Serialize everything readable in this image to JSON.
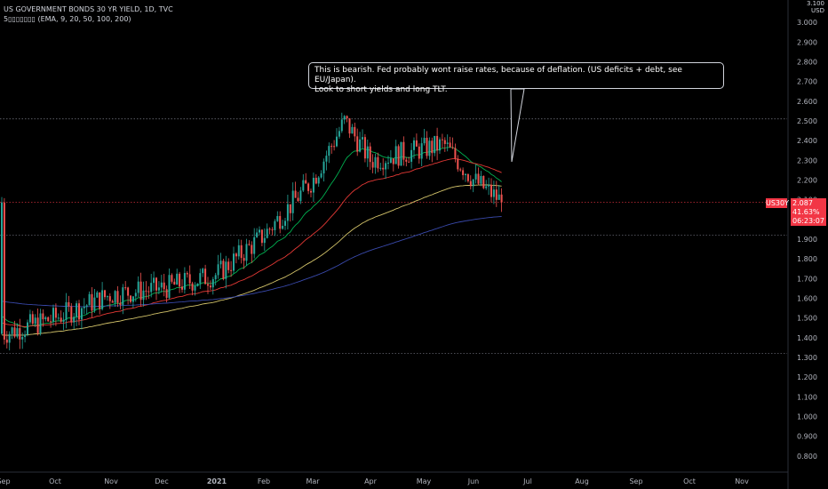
{
  "legend": {
    "title": "US GOVERNMENT BONDS 30 YR YIELD, 1D, TVC",
    "indicator": "5▯▯▯▯▯▯▯ (EMA, 9, 20, 50, 100, 200)"
  },
  "callout": {
    "text_line1": "This is bearish. Fed probably wont raise rates, because of deflation. (US deficits + debt, see EU/Japan).",
    "text_line2": "Look to short yields and long TLT."
  },
  "price_tag": {
    "symbol": "US30Y",
    "value": "2.087",
    "change": "41.63%",
    "countdown": "06:23:07"
  },
  "axis_currency": {
    "line1": "3.100",
    "line2": "USD"
  },
  "colors": {
    "up": "#26a69a",
    "down": "#ef5350",
    "ema20": "#00b050",
    "ema50": "#e53935",
    "ema100": "#d4c46a",
    "ema200": "#3949ab",
    "last": "#f23645"
  },
  "chart_data": {
    "type": "candlestick",
    "title": "US GOVERNMENT BONDS 30 YR YIELD, 1D, TVC",
    "x_ticks": [
      "Sep",
      "Oct",
      "Nov",
      "Dec",
      "2021",
      "Feb",
      "Mar",
      "Apr",
      "May",
      "Jun",
      "Jul",
      "Aug",
      "Sep",
      "Oct",
      "Nov"
    ],
    "y_ticks": [
      "3.000",
      "2.900",
      "2.800",
      "2.700",
      "2.600",
      "2.500",
      "2.400",
      "2.300",
      "2.200",
      "2.100",
      "1.900",
      "1.800",
      "1.700",
      "1.600",
      "1.500",
      "1.400",
      "1.300",
      "1.200",
      "1.100",
      "1.000",
      "0.900",
      "0.800"
    ],
    "ylim": [
      0.72,
      3.08
    ],
    "last_price": 2.087,
    "horizontal_lines": [
      2.51,
      1.92,
      1.32
    ],
    "key_points": [
      {
        "date": "Sep",
        "close": 1.42
      },
      {
        "date": "Oct",
        "close": 1.5
      },
      {
        "date": "Nov",
        "close": 1.62
      },
      {
        "date": "Dec",
        "close": 1.65
      },
      {
        "date": "2021",
        "close": 1.72
      },
      {
        "date": "Feb",
        "close": 1.92
      },
      {
        "date": "Mar",
        "close": 2.2
      },
      {
        "date": "Mar peak",
        "close": 2.5
      },
      {
        "date": "Apr",
        "close": 2.3
      },
      {
        "date": "May",
        "close": 2.38
      },
      {
        "date": "Jun",
        "close": 2.2
      },
      {
        "date": "last",
        "close": 2.087
      }
    ],
    "series": [
      {
        "name": "EMA 20"
      },
      {
        "name": "EMA 50"
      },
      {
        "name": "EMA 100"
      },
      {
        "name": "EMA 200"
      }
    ]
  }
}
